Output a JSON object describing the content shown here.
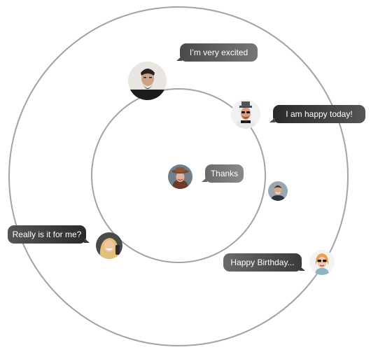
{
  "colors": {
    "ring": "#a3a3a3",
    "bubble_dark": "#2a2a2a",
    "bubble_light": "#8a8a8a",
    "text": "#ffffff"
  },
  "avatars": [
    {
      "id": "bearded-man",
      "icon": "bearded-man-avatar-icon"
    },
    {
      "id": "hipster-hat",
      "icon": "hipster-hat-avatar-icon"
    },
    {
      "id": "center-woman-hat",
      "icon": "woman-hat-avatar-icon"
    },
    {
      "id": "smiling-man",
      "icon": "smiling-man-avatar-icon"
    },
    {
      "id": "laughing-woman",
      "icon": "laughing-woman-avatar-icon"
    },
    {
      "id": "woman-sunglasses",
      "icon": "woman-sunglasses-avatar-icon"
    }
  ],
  "messages": {
    "excited": "I’m very excited",
    "happy_today": "I am happy today!",
    "thanks": "Thanks",
    "really": "Really is it for me?",
    "birthday": "Happy Birthday..."
  }
}
